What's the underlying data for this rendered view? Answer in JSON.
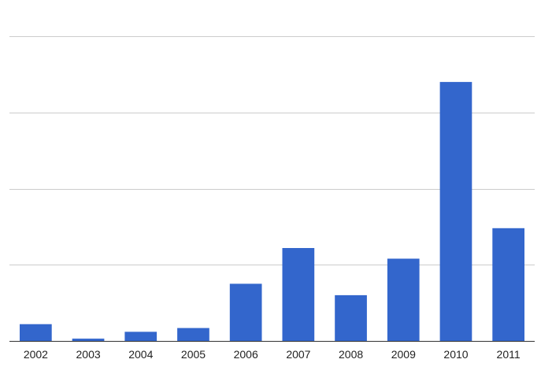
{
  "chart_data": {
    "type": "bar",
    "title": "",
    "xlabel": "",
    "ylabel": "",
    "categories": [
      "2002",
      "2003",
      "2004",
      "2005",
      "2006",
      "2007",
      "2008",
      "2009",
      "2010",
      "2011"
    ],
    "values": [
      22,
      3,
      12,
      17,
      75,
      122,
      60,
      108,
      340,
      148
    ],
    "ylim": [
      0,
      400
    ],
    "y_gridlines": [
      0,
      100,
      200,
      300,
      400
    ],
    "y_tick_labels_shown": false,
    "grid": true,
    "legend": "none",
    "colors": {
      "bar": "#3366cc",
      "gridline": "#cccccc",
      "baseline": "#333333"
    }
  }
}
